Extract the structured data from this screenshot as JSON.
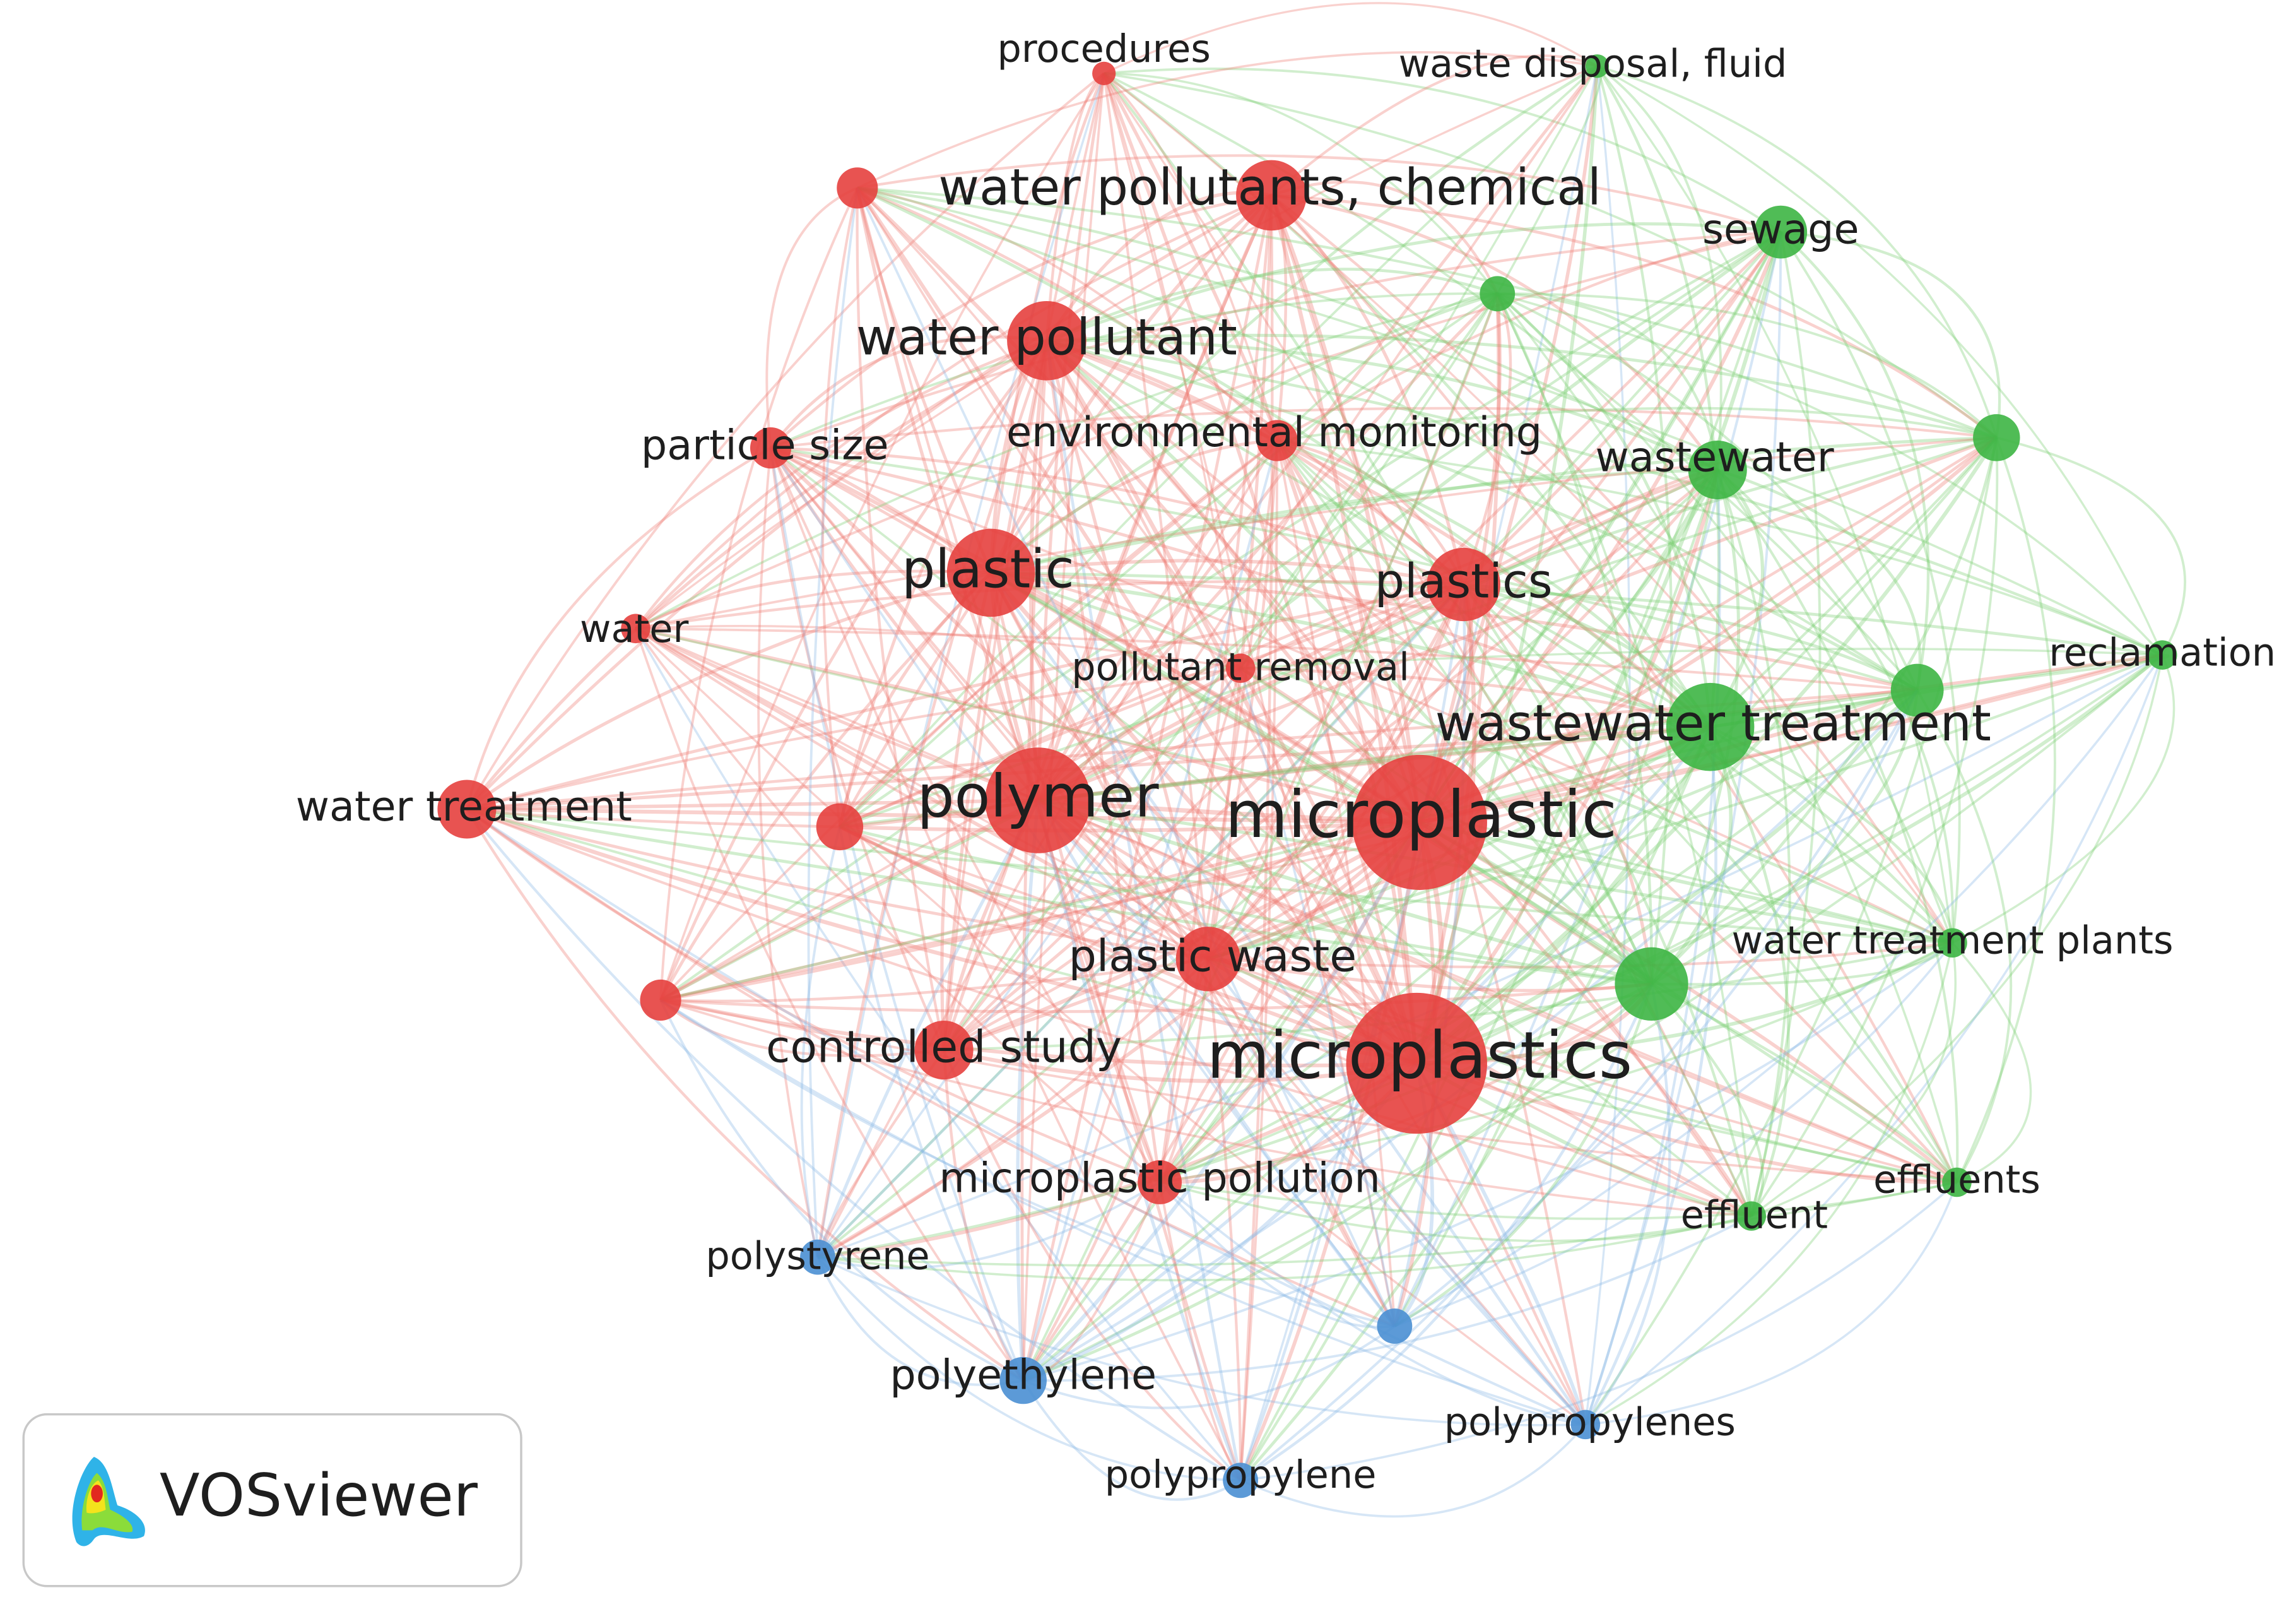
{
  "nodes": [
    {
      "label": "procedures"
    },
    {
      "label": "waste disposal, fluid"
    },
    {
      "label": "water pollutants, chemical"
    },
    {
      "label": "sewage"
    },
    {
      "label": "water pollutant"
    },
    {
      "label": "particle size"
    },
    {
      "label": "environmental monitoring"
    },
    {
      "label": "wastewater"
    },
    {
      "label": "plastic"
    },
    {
      "label": "plastics"
    },
    {
      "label": "water"
    },
    {
      "label": "pollutant removal"
    },
    {
      "label": "reclamation"
    },
    {
      "label": "wastewater treatment"
    },
    {
      "label": "water treatment"
    },
    {
      "label": "polymer"
    },
    {
      "label": "microplastic"
    },
    {
      "label": "water treatment plants"
    },
    {
      "label": "plastic waste"
    },
    {
      "label": "controlled study"
    },
    {
      "label": "microplastics"
    },
    {
      "label": "microplastic pollution"
    },
    {
      "label": "effluents"
    },
    {
      "label": "effluent"
    },
    {
      "label": "polystyrene"
    },
    {
      "label": "polyethylene"
    },
    {
      "label": "polypropylenes"
    },
    {
      "label": "polypropylene"
    }
  ],
  "logo": {
    "text": "VOSviewer"
  }
}
